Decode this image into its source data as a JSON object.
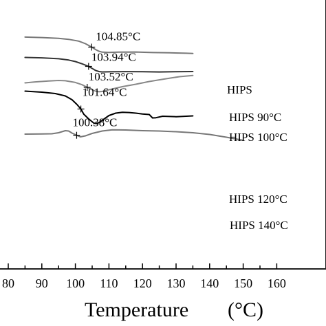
{
  "chart_data": {
    "type": "line",
    "xlabel": "Temperature",
    "xlabel_unit": "(°C)",
    "xlim": [
      80,
      160
    ],
    "x_ticks": [
      80,
      90,
      100,
      110,
      120,
      130,
      140,
      150,
      160
    ],
    "x_tick_labels": [
      "80",
      "90",
      "100",
      "110",
      "120",
      "130",
      "140",
      "150",
      "160"
    ],
    "y_axis": "unlabeled (stacked curves)",
    "series": [
      {
        "name": "HIPS",
        "color": "#777777",
        "tg_x": 104.85,
        "tg_label": "104.85°C",
        "points": [
          [
            85,
            -1.9
          ],
          [
            90,
            -2.6
          ],
          [
            95,
            -3.8
          ],
          [
            98,
            -5.2
          ],
          [
            101,
            -7.8
          ],
          [
            103,
            -11.5
          ],
          [
            104.85,
            -16.5
          ],
          [
            106,
            -20
          ],
          [
            107,
            -22.5
          ],
          [
            108,
            -23.8
          ],
          [
            110,
            -24.2
          ],
          [
            113,
            -23.7
          ],
          [
            118,
            -23.6
          ],
          [
            123,
            -24.4
          ],
          [
            128,
            -24.8
          ],
          [
            133,
            -25.4
          ],
          [
            135,
            -25.8
          ]
        ]
      },
      {
        "name": "HIPS 90°C",
        "color": "#333333",
        "tg_x": 103.94,
        "tg_label": "103.94°C",
        "points": [
          [
            85,
            -31.5
          ],
          [
            90,
            -32.1
          ],
          [
            95,
            -33.4
          ],
          [
            98,
            -35.3
          ],
          [
            100,
            -37.5
          ],
          [
            102,
            -40.8
          ],
          [
            103.94,
            -44.5
          ],
          [
            105,
            -47.5
          ],
          [
            106,
            -50.4
          ],
          [
            107,
            -52
          ],
          [
            108,
            -52.6
          ],
          [
            110,
            -52.4
          ],
          [
            115,
            -52.1
          ],
          [
            120,
            -52.3
          ],
          [
            125,
            -52.6
          ],
          [
            130,
            -52.2
          ],
          [
            135,
            -52
          ]
        ]
      },
      {
        "name": "HIPS 100°C",
        "color": "#888888",
        "tg_x": 103.52,
        "tg_label": "103.52°C",
        "points": [
          [
            85,
            -68.5
          ],
          [
            88,
            -67.1
          ],
          [
            92,
            -65.8
          ],
          [
            95,
            -65
          ],
          [
            97,
            -65.4
          ],
          [
            100,
            -67.9
          ],
          [
            102,
            -71.2
          ],
          [
            103.52,
            -75
          ],
          [
            105,
            -78.5
          ],
          [
            106,
            -80.5
          ],
          [
            107,
            -81.4
          ],
          [
            108,
            -81
          ],
          [
            110,
            -78.5
          ],
          [
            114,
            -74
          ],
          [
            118,
            -70.5
          ],
          [
            122,
            -66.5
          ],
          [
            127,
            -62.5
          ],
          [
            131,
            -59.5
          ],
          [
            135,
            -57.8
          ]
        ]
      },
      {
        "name": "HIPS 120°C",
        "color": "#000000",
        "tg_x": 101.64,
        "tg_label": "101.64°C",
        "points": [
          [
            85,
            -80.5
          ],
          [
            90,
            -82
          ],
          [
            94,
            -84
          ],
          [
            97,
            -87.5
          ],
          [
            99,
            -93
          ],
          [
            100.5,
            -100
          ],
          [
            101.64,
            -106.5
          ],
          [
            102.5,
            -114
          ],
          [
            104,
            -121
          ],
          [
            105.5,
            -127
          ],
          [
            106.5,
            -127.8
          ],
          [
            108,
            -123
          ],
          [
            110,
            -116
          ],
          [
            112,
            -112.5
          ],
          [
            114,
            -111.3
          ],
          [
            116,
            -111.6
          ],
          [
            118,
            -112.5
          ],
          [
            120,
            -113.8
          ],
          [
            122,
            -114.5
          ],
          [
            123,
            -119.5
          ],
          [
            124,
            -119.2
          ],
          [
            126,
            -117
          ],
          [
            130,
            -117.7
          ],
          [
            135,
            -116.5
          ]
        ]
      },
      {
        "name": "HIPS 140°C",
        "color": "#777777",
        "tg_x": 100.38,
        "tg_label": "100.38°C",
        "points": [
          [
            85,
            -143
          ],
          [
            90,
            -142.8
          ],
          [
            93,
            -142.5
          ],
          [
            95,
            -141
          ],
          [
            97,
            -138
          ],
          [
            98,
            -138.5
          ],
          [
            99,
            -141.5
          ],
          [
            100.38,
            -144.7
          ],
          [
            101.5,
            -147
          ],
          [
            103,
            -145.5
          ],
          [
            105,
            -142
          ],
          [
            108,
            -138.5
          ],
          [
            111,
            -136.8
          ],
          [
            115,
            -137
          ],
          [
            120,
            -138
          ],
          [
            125,
            -138.5
          ],
          [
            130,
            -139.5
          ],
          [
            135,
            -141
          ],
          [
            140,
            -143.5
          ],
          [
            145,
            -147.5
          ],
          [
            150,
            -152
          ]
        ]
      }
    ],
    "annotations": [
      "104.85°C",
      "103.94°C",
      "103.52°C",
      "101.64°C",
      "100.38°C"
    ]
  }
}
